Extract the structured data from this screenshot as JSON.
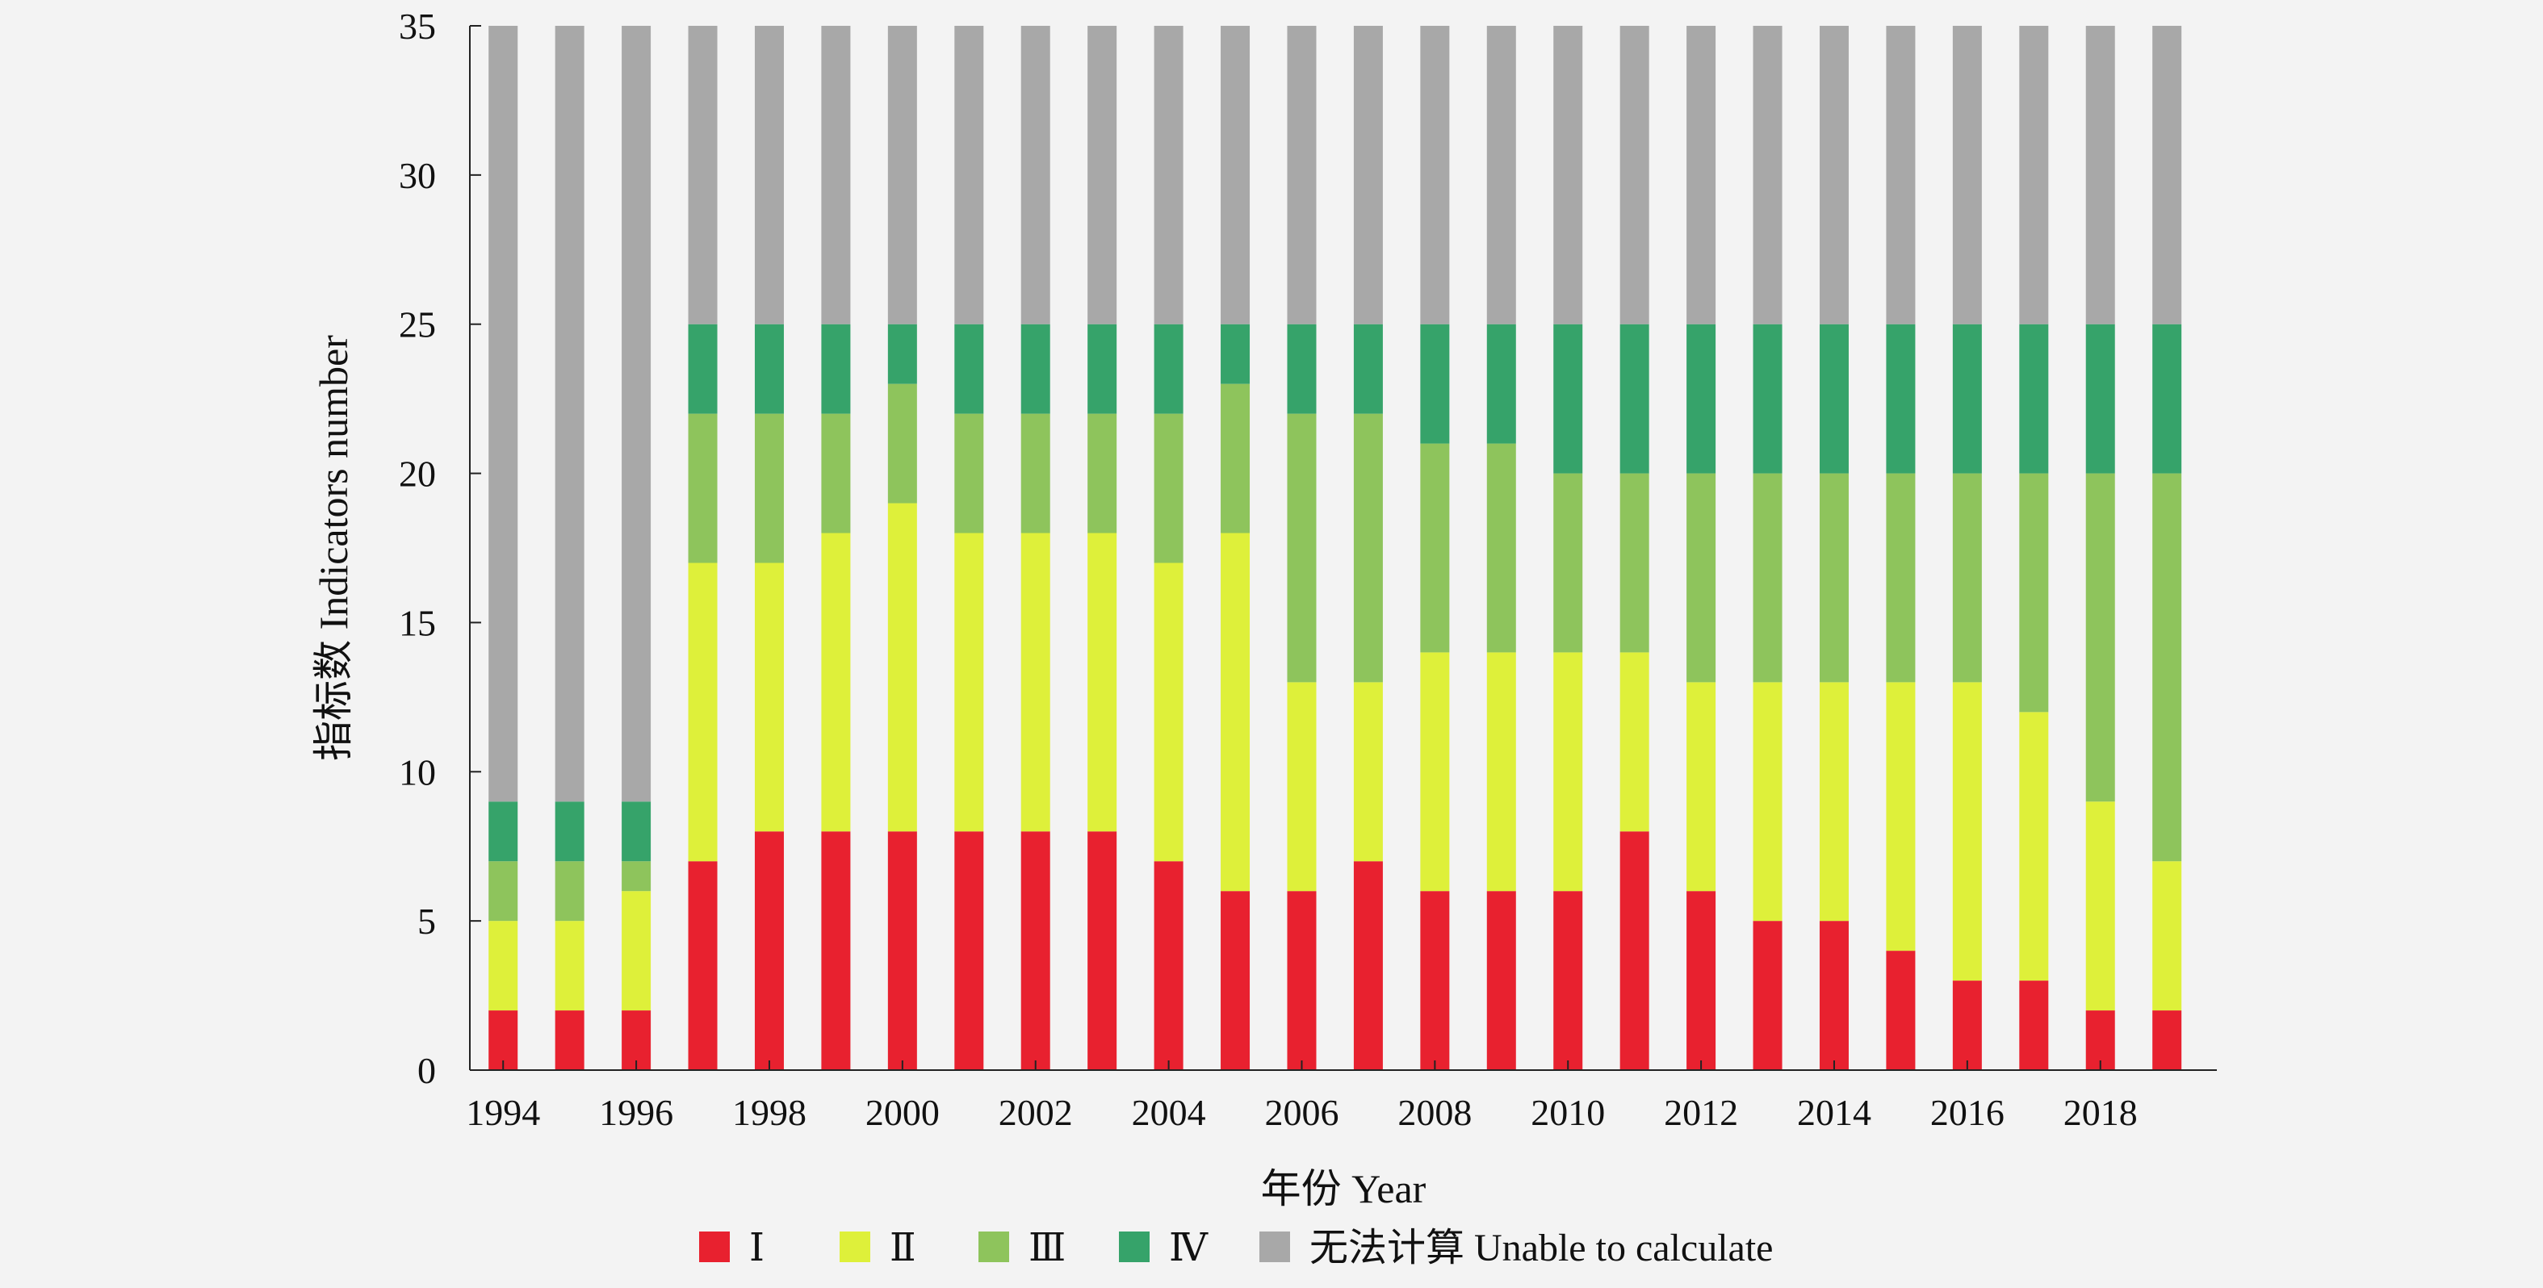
{
  "chart_data": {
    "type": "bar",
    "stacked": true,
    "xlabel": "年份 Year",
    "ylabel": "指标数 Indicators number",
    "ylim": [
      0,
      35
    ],
    "yticks": [
      0,
      5,
      10,
      15,
      20,
      25,
      30,
      35
    ],
    "xtick_labels": [
      "1994",
      "1996",
      "1998",
      "2000",
      "2002",
      "2004",
      "2006",
      "2008",
      "2010",
      "2012",
      "2014",
      "2016",
      "2018"
    ],
    "categories": [
      "1994",
      "1995",
      "1996",
      "1997",
      "1998",
      "1999",
      "2000",
      "2001",
      "2002",
      "2003",
      "2004",
      "2005",
      "2006",
      "2007",
      "2008",
      "2009",
      "2010",
      "2011",
      "2012",
      "2013",
      "2014",
      "2015",
      "2016",
      "2017",
      "2018",
      "2019"
    ],
    "legend_position": "bottom",
    "series": [
      {
        "name": "Ⅰ",
        "color": "#e8212f",
        "values": [
          2,
          2,
          2,
          7,
          8,
          8,
          8,
          8,
          8,
          8,
          7,
          6,
          6,
          7,
          6,
          6,
          6,
          8,
          6,
          5,
          5,
          4,
          3,
          3,
          2,
          2
        ]
      },
      {
        "name": "Ⅱ",
        "color": "#def03a",
        "values": [
          3,
          3,
          4,
          10,
          9,
          10,
          11,
          10,
          10,
          10,
          10,
          12,
          7,
          6,
          8,
          8,
          8,
          6,
          7,
          8,
          8,
          9,
          10,
          9,
          7,
          5
        ]
      },
      {
        "name": "Ⅲ",
        "color": "#8ec45c",
        "values": [
          2,
          2,
          1,
          5,
          5,
          4,
          4,
          4,
          4,
          4,
          5,
          5,
          9,
          9,
          7,
          7,
          6,
          6,
          7,
          7,
          7,
          7,
          7,
          8,
          11,
          13
        ]
      },
      {
        "name": "Ⅳ",
        "color": "#36a36a",
        "values": [
          2,
          2,
          2,
          3,
          3,
          3,
          2,
          3,
          3,
          3,
          3,
          2,
          3,
          3,
          4,
          4,
          5,
          5,
          5,
          5,
          5,
          5,
          5,
          5,
          5,
          5
        ]
      },
      {
        "name": "无法计算 Unable to calculate",
        "color": "#a8a8a8",
        "values": [
          26,
          26,
          26,
          10,
          10,
          10,
          10,
          10,
          10,
          10,
          10,
          10,
          10,
          10,
          10,
          10,
          10,
          10,
          10,
          10,
          10,
          10,
          10,
          10,
          10,
          10
        ]
      }
    ]
  }
}
